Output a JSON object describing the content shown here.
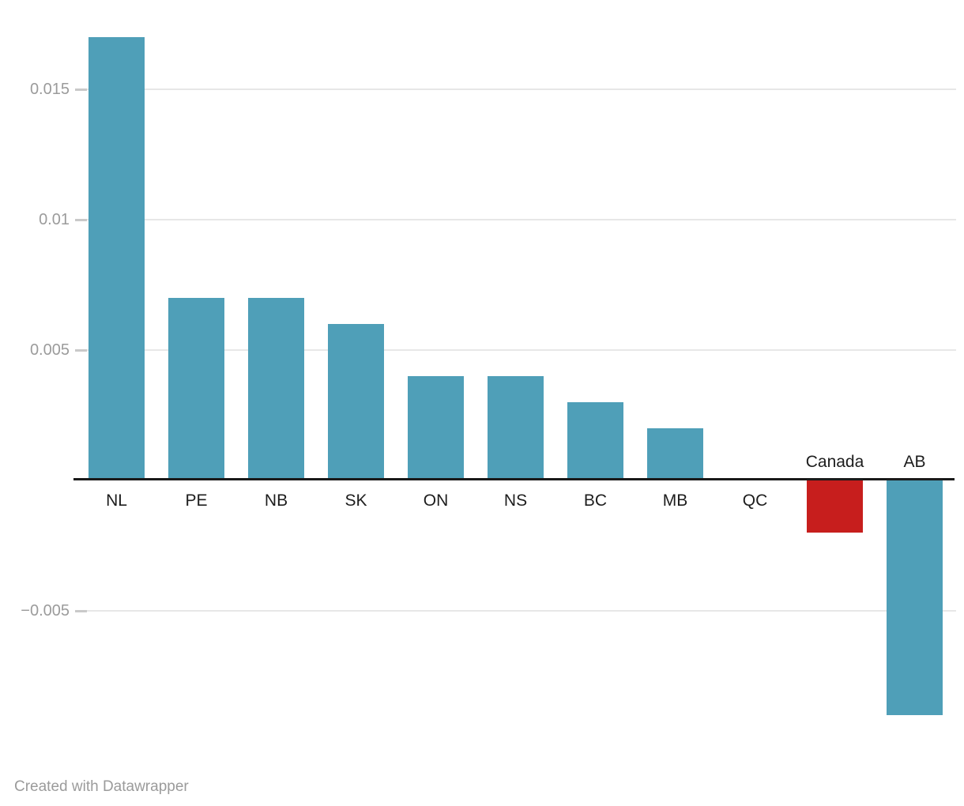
{
  "chart_data": {
    "type": "bar",
    "categories": [
      "NL",
      "PE",
      "NB",
      "SK",
      "ON",
      "NS",
      "BC",
      "MB",
      "QC",
      "Canada",
      "AB"
    ],
    "values": [
      0.017,
      0.007,
      0.007,
      0.006,
      0.004,
      0.004,
      0.003,
      0.002,
      0,
      -0.002,
      -0.009
    ],
    "highlighted_category": "Canada",
    "y_ticks": [
      {
        "label": "0.015",
        "value": 0.015
      },
      {
        "label": "0.01",
        "value": 0.01
      },
      {
        "label": "0.005",
        "value": 0.005
      },
      {
        "label": "−0.005",
        "value": -0.005
      }
    ],
    "ylim": [
      -0.009,
      0.017
    ],
    "grid": true,
    "legend": "none",
    "negative_bar_labels_position": "above-axis"
  },
  "colors": {
    "bar_default": "#4f9fb8",
    "bar_highlight": "#c71e1d",
    "axis": "#1a1a1a",
    "gridline": "#e7e7e7",
    "tick_dash": "#c9c9c9",
    "tick_text": "#9b9b9b",
    "category_text": "#1d1d1d",
    "credit_text": "#9b9b9b"
  },
  "footer": {
    "credit": "Created with Datawrapper"
  }
}
